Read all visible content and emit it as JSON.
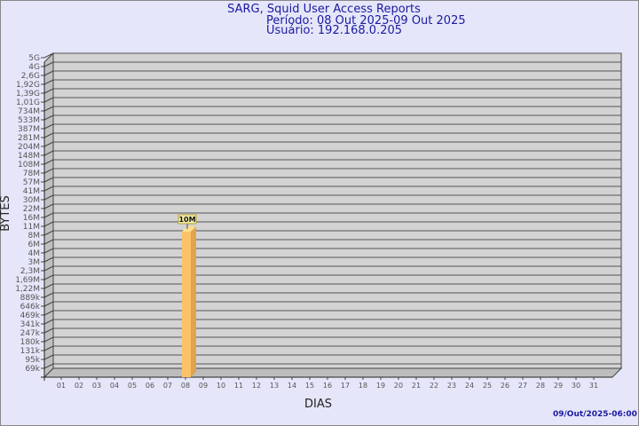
{
  "chart_data": {
    "type": "bar",
    "title": "SARG, Squid User Access Reports",
    "subtitle_period": "Período: 08 Out 2025-09 Out 2025",
    "subtitle_user": "Usuário: 192.168.0.205",
    "xlabel": "DIAS",
    "ylabel": "BYTES",
    "y_scale": "log",
    "y_ticks": [
      "5G",
      "4G",
      "2,6G",
      "1,92G",
      "1,39G",
      "1,01G",
      "734M",
      "533M",
      "387M",
      "281M",
      "204M",
      "148M",
      "108M",
      "78M",
      "57M",
      "41M",
      "30M",
      "22M",
      "16M",
      "11M",
      "8M",
      "6M",
      "4M",
      "3M",
      "2,3M",
      "1,69M",
      "1,22M",
      "889k",
      "646k",
      "469k",
      "341k",
      "247k",
      "180k",
      "131k",
      "95k",
      "69k"
    ],
    "categories": [
      "01",
      "02",
      "03",
      "04",
      "05",
      "06",
      "07",
      "08",
      "09",
      "10",
      "11",
      "12",
      "13",
      "14",
      "15",
      "16",
      "17",
      "18",
      "19",
      "20",
      "21",
      "22",
      "23",
      "24",
      "25",
      "26",
      "27",
      "28",
      "29",
      "30",
      "31"
    ],
    "values": [
      0,
      0,
      0,
      0,
      0,
      0,
      0,
      10000000,
      0,
      0,
      0,
      0,
      0,
      0,
      0,
      0,
      0,
      0,
      0,
      0,
      0,
      0,
      0,
      0,
      0,
      0,
      0,
      0,
      0,
      0,
      0
    ],
    "data_labels": {
      "08": "10M"
    },
    "grid": true,
    "colors": {
      "bar": "#fbc268",
      "bar_side": "#e0a34e",
      "bar_top": "#fde08f",
      "plot_bg": "#d3d3d3",
      "title": "#1a1aa0"
    }
  },
  "footer": {
    "timestamp": "09/Out/2025-06:00"
  }
}
